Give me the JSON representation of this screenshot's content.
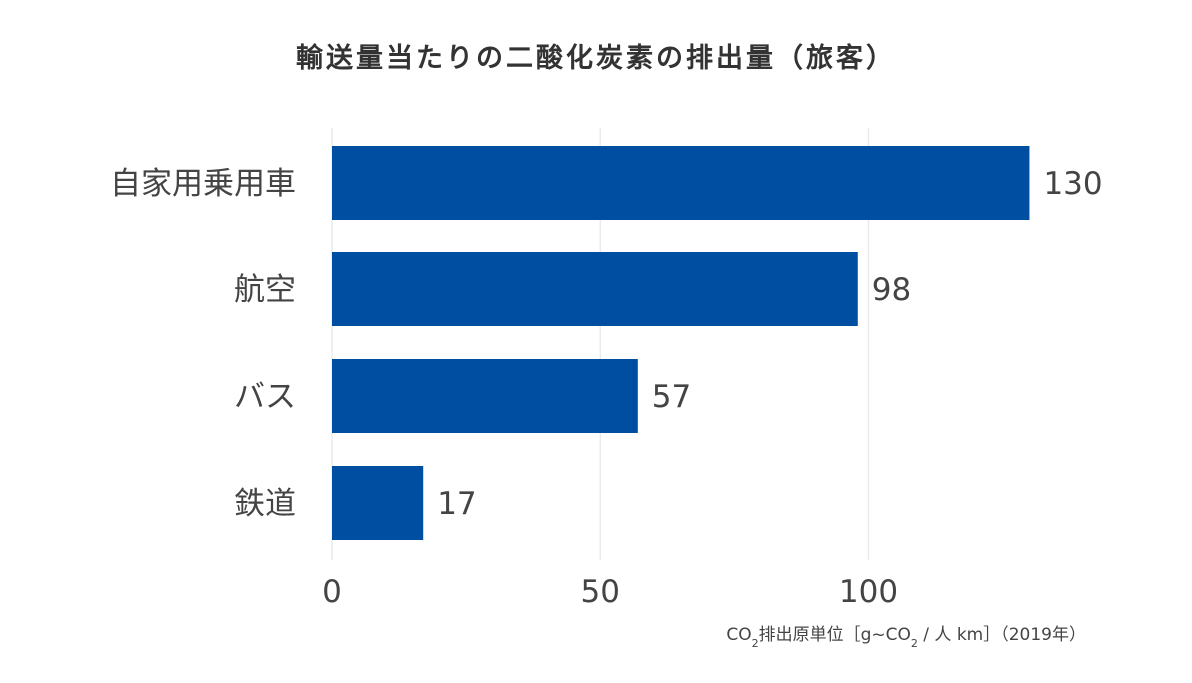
{
  "title": "輸送量当たりの二酸化炭素の排出量（旅客）",
  "chart_data": {
    "type": "bar",
    "orientation": "horizontal",
    "title": "輸送量当たりの二酸化炭素の排出量（旅客）",
    "categories": [
      "自家用乗用車",
      "航空",
      "バス",
      "鉄道"
    ],
    "values": [
      130,
      98,
      57,
      17
    ],
    "xlim": [
      0,
      130
    ],
    "xticks": [
      0,
      50,
      100
    ],
    "xlabel": {
      "prefix": "CO",
      "sub1": "2",
      "middle": "排出原単位［g~CO",
      "sub2": "2",
      "suffix": " / 人 km］（2019年）"
    },
    "grid": true,
    "bar_color": "#004ea2",
    "grid_color": "#ebebeb"
  }
}
